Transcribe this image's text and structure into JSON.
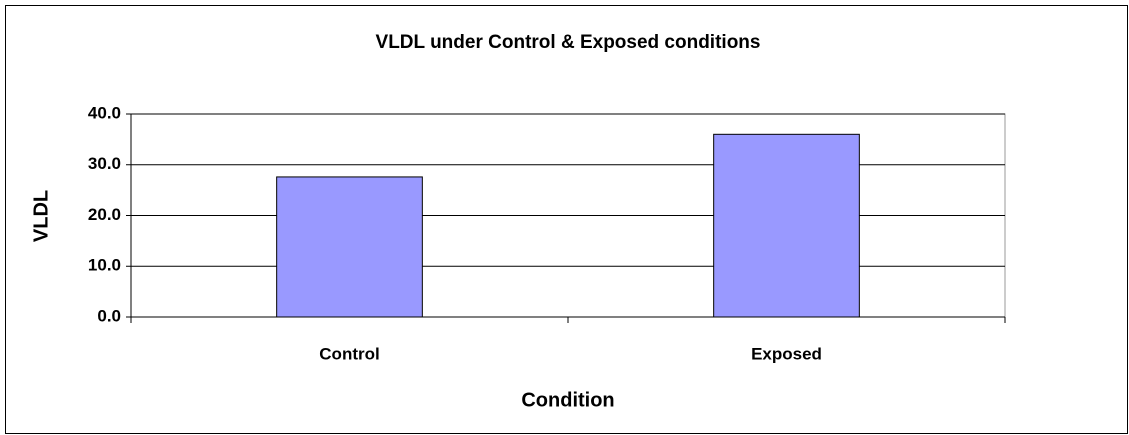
{
  "chart_data": {
    "type": "bar",
    "title": "VLDL under Control & Exposed conditions",
    "x_label": "Condition",
    "y_label": "VLDL",
    "categories": [
      "Control",
      "Exposed"
    ],
    "values": [
      27.6,
      36.0
    ],
    "color": "#9999ff",
    "ylim": [
      0,
      40
    ],
    "yticks": [
      {
        "value": 0,
        "label": "0.0"
      },
      {
        "value": 10,
        "label": "10.0"
      },
      {
        "value": 20,
        "label": "20.0"
      },
      {
        "value": 30,
        "label": "30.0"
      },
      {
        "value": 40,
        "label": "40.0"
      }
    ],
    "grid": true
  }
}
